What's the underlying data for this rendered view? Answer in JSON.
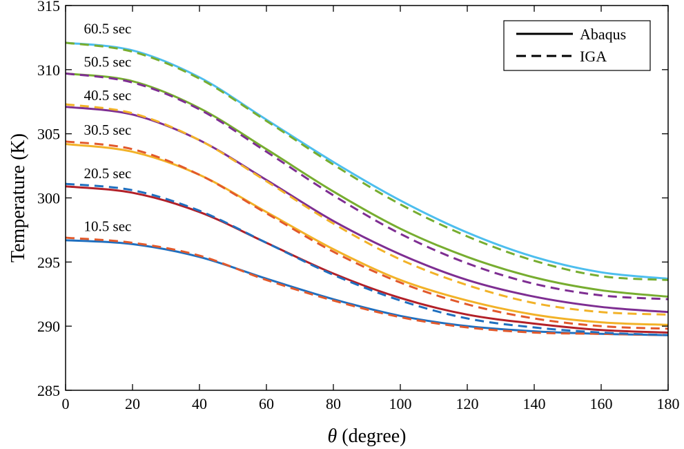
{
  "chart_data": {
    "type": "line",
    "xlabel_symbol": "θ",
    "xlabel_rest": " (degree)",
    "ylabel": "Temperature (K)",
    "xlim": [
      0,
      180
    ],
    "ylim": [
      285,
      315
    ],
    "xticks": [
      0,
      20,
      40,
      60,
      80,
      100,
      120,
      140,
      160,
      180
    ],
    "yticks": [
      285,
      290,
      295,
      300,
      305,
      310,
      315
    ],
    "grid": false,
    "legend_position": "top-right",
    "legend": [
      {
        "label": "Abaqus",
        "style": "solid"
      },
      {
        "label": "IGA",
        "style": "dashed"
      }
    ],
    "annotations": [
      {
        "text": "60.5 sec",
        "x": 3,
        "y": 313.2
      },
      {
        "text": "50.5 sec",
        "x": 3,
        "y": 310.6
      },
      {
        "text": "40.5 sec",
        "x": 3,
        "y": 308.0
      },
      {
        "text": "30.5 sec",
        "x": 3,
        "y": 305.3
      },
      {
        "text": "20.5 sec",
        "x": 3,
        "y": 301.9
      },
      {
        "text": "10.5 sec",
        "x": 3,
        "y": 297.8
      }
    ],
    "series": [
      {
        "name": "Abaqus 10.5 sec",
        "style": "solid",
        "color": "#1f6fbf",
        "x": [
          0,
          20,
          40,
          60,
          80,
          100,
          120,
          140,
          160,
          180
        ],
        "y": [
          296.7,
          296.4,
          295.4,
          293.7,
          292.1,
          290.8,
          290.0,
          289.6,
          289.4,
          289.3
        ]
      },
      {
        "name": "IGA 10.5 sec",
        "style": "dashed",
        "color": "#e2592b",
        "x": [
          0,
          20,
          40,
          60,
          80,
          100,
          120,
          140,
          160,
          180
        ],
        "y": [
          296.9,
          296.5,
          295.5,
          293.6,
          292.0,
          290.7,
          289.9,
          289.5,
          289.4,
          289.3
        ]
      },
      {
        "name": "Abaqus 20.5 sec",
        "style": "solid",
        "color": "#b22028",
        "x": [
          0,
          20,
          40,
          60,
          80,
          100,
          120,
          140,
          160,
          180
        ],
        "y": [
          300.9,
          300.4,
          298.9,
          296.5,
          294.1,
          292.2,
          290.9,
          290.2,
          289.7,
          289.5
        ]
      },
      {
        "name": "IGA 20.5 sec",
        "style": "dashed",
        "color": "#1f6fbf",
        "x": [
          0,
          20,
          40,
          60,
          80,
          100,
          120,
          140,
          160,
          180
        ],
        "y": [
          301.1,
          300.6,
          299.0,
          296.5,
          294.0,
          292.0,
          290.6,
          289.9,
          289.5,
          289.3
        ]
      },
      {
        "name": "Abaqus 30.5 sec",
        "style": "solid",
        "color": "#f2b228",
        "x": [
          0,
          20,
          40,
          60,
          80,
          100,
          120,
          140,
          160,
          180
        ],
        "y": [
          304.2,
          303.6,
          301.8,
          298.9,
          296.0,
          293.6,
          292.0,
          290.9,
          290.3,
          290.1
        ]
      },
      {
        "name": "IGA 30.5 sec",
        "style": "dashed",
        "color": "#e2592b",
        "x": [
          0,
          20,
          40,
          60,
          80,
          100,
          120,
          140,
          160,
          180
        ],
        "y": [
          304.4,
          303.8,
          301.8,
          298.8,
          295.8,
          293.4,
          291.7,
          290.6,
          290.0,
          289.8
        ]
      },
      {
        "name": "Abaqus 40.5 sec",
        "style": "solid",
        "color": "#7e2e92",
        "x": [
          0,
          20,
          40,
          60,
          80,
          100,
          120,
          140,
          160,
          180
        ],
        "y": [
          307.1,
          306.5,
          304.5,
          301.4,
          298.2,
          295.6,
          293.6,
          292.3,
          291.5,
          291.1
        ]
      },
      {
        "name": "IGA 40.5 sec",
        "style": "dashed",
        "color": "#f2b228",
        "x": [
          0,
          20,
          40,
          60,
          80,
          100,
          120,
          140,
          160,
          180
        ],
        "y": [
          307.3,
          306.6,
          304.5,
          301.3,
          298.0,
          295.2,
          293.2,
          291.8,
          291.1,
          290.9
        ]
      },
      {
        "name": "Abaqus 50.5 sec",
        "style": "solid",
        "color": "#77ad30",
        "x": [
          0,
          20,
          40,
          60,
          80,
          100,
          120,
          140,
          160,
          180
        ],
        "y": [
          309.7,
          309.1,
          307.0,
          303.8,
          300.5,
          297.6,
          295.4,
          293.8,
          292.8,
          292.3
        ]
      },
      {
        "name": "IGA 50.5 sec",
        "style": "dashed",
        "color": "#7e2e92",
        "x": [
          0,
          20,
          40,
          60,
          80,
          100,
          120,
          140,
          160,
          180
        ],
        "y": [
          309.7,
          309.0,
          306.9,
          303.6,
          300.2,
          297.2,
          294.9,
          293.3,
          292.4,
          292.1
        ]
      },
      {
        "name": "Abaqus 60.5 sec",
        "style": "solid",
        "color": "#4dbeee",
        "x": [
          0,
          20,
          40,
          60,
          80,
          100,
          120,
          140,
          160,
          180
        ],
        "y": [
          312.1,
          311.5,
          309.4,
          306.1,
          302.8,
          299.8,
          297.3,
          295.4,
          294.2,
          293.7
        ]
      },
      {
        "name": "IGA 60.5 sec",
        "style": "dashed",
        "color": "#77ad30",
        "x": [
          0,
          20,
          40,
          60,
          80,
          100,
          120,
          140,
          160,
          180
        ],
        "y": [
          312.1,
          311.4,
          309.3,
          306.0,
          302.6,
          299.5,
          297.0,
          295.1,
          293.9,
          293.6
        ]
      }
    ]
  }
}
